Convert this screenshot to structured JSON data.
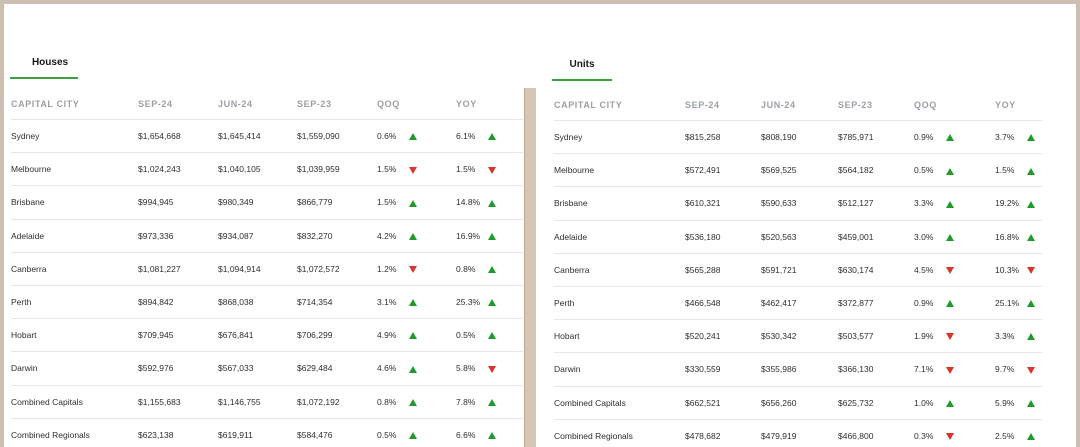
{
  "colors": {
    "up": "#1f9a2b",
    "down": "#d9352c",
    "tab_underline": "#3aa040"
  },
  "houses": {
    "tab_label": "Houses",
    "headers": [
      "CAPITAL CITY",
      "SEP-24",
      "JUN-24",
      "SEP-23",
      "QOQ",
      "YOY"
    ],
    "rows": [
      {
        "city": "Sydney",
        "sep24": "$1,654,668",
        "jun24": "$1,645,414",
        "sep23": "$1,559,090",
        "qoq": "0.6%",
        "qoq_dir": "up",
        "yoy": "6.1%",
        "yoy_dir": "up"
      },
      {
        "city": "Melbourne",
        "sep24": "$1,024,243",
        "jun24": "$1,040,105",
        "sep23": "$1,039,959",
        "qoq": "1.5%",
        "qoq_dir": "down",
        "yoy": "1.5%",
        "yoy_dir": "down"
      },
      {
        "city": "Brisbane",
        "sep24": "$994,945",
        "jun24": "$980,349",
        "sep23": "$866,779",
        "qoq": "1.5%",
        "qoq_dir": "up",
        "yoy": "14.8%",
        "yoy_dir": "up"
      },
      {
        "city": "Adelaide",
        "sep24": "$973,336",
        "jun24": "$934,087",
        "sep23": "$832,270",
        "qoq": "4.2%",
        "qoq_dir": "up",
        "yoy": "16.9%",
        "yoy_dir": "up"
      },
      {
        "city": "Canberra",
        "sep24": "$1,081,227",
        "jun24": "$1,094,914",
        "sep23": "$1,072,572",
        "qoq": "1.2%",
        "qoq_dir": "down",
        "yoy": "0.8%",
        "yoy_dir": "up"
      },
      {
        "city": "Perth",
        "sep24": "$894,842",
        "jun24": "$868,038",
        "sep23": "$714,354",
        "qoq": "3.1%",
        "qoq_dir": "up",
        "yoy": "25.3%",
        "yoy_dir": "up"
      },
      {
        "city": "Hobart",
        "sep24": "$709,945",
        "jun24": "$676,841",
        "sep23": "$706,299",
        "qoq": "4.9%",
        "qoq_dir": "up",
        "yoy": "0.5%",
        "yoy_dir": "up"
      },
      {
        "city": "Darwin",
        "sep24": "$592,976",
        "jun24": "$567,033",
        "sep23": "$629,484",
        "qoq": "4.6%",
        "qoq_dir": "up",
        "yoy": "5.8%",
        "yoy_dir": "down"
      },
      {
        "city": "Combined Capitals",
        "sep24": "$1,155,683",
        "jun24": "$1,146,755",
        "sep23": "$1,072,192",
        "qoq": "0.8%",
        "qoq_dir": "up",
        "yoy": "7.8%",
        "yoy_dir": "up"
      },
      {
        "city": "Combined Regionals",
        "sep24": "$623,138",
        "jun24": "$619,911",
        "sep23": "$584,476",
        "qoq": "0.5%",
        "qoq_dir": "up",
        "yoy": "6.6%",
        "yoy_dir": "up"
      }
    ]
  },
  "units": {
    "tab_label": "Units",
    "headers": [
      "CAPITAL CITY",
      "SEP-24",
      "JUN-24",
      "SEP-23",
      "QOQ",
      "YOY"
    ],
    "rows": [
      {
        "city": "Sydney",
        "sep24": "$815,258",
        "jun24": "$808,190",
        "sep23": "$785,971",
        "qoq": "0.9%",
        "qoq_dir": "up",
        "yoy": "3.7%",
        "yoy_dir": "up"
      },
      {
        "city": "Melbourne",
        "sep24": "$572,491",
        "jun24": "$569,525",
        "sep23": "$564,182",
        "qoq": "0.5%",
        "qoq_dir": "up",
        "yoy": "1.5%",
        "yoy_dir": "up"
      },
      {
        "city": "Brisbane",
        "sep24": "$610,321",
        "jun24": "$590,633",
        "sep23": "$512,127",
        "qoq": "3.3%",
        "qoq_dir": "up",
        "yoy": "19.2%",
        "yoy_dir": "up"
      },
      {
        "city": "Adelaide",
        "sep24": "$536,180",
        "jun24": "$520,563",
        "sep23": "$459,001",
        "qoq": "3.0%",
        "qoq_dir": "up",
        "yoy": "16.8%",
        "yoy_dir": "up"
      },
      {
        "city": "Canberra",
        "sep24": "$565,288",
        "jun24": "$591,721",
        "sep23": "$630,174",
        "qoq": "4.5%",
        "qoq_dir": "down",
        "yoy": "10.3%",
        "yoy_dir": "down"
      },
      {
        "city": "Perth",
        "sep24": "$466,548",
        "jun24": "$462,417",
        "sep23": "$372,877",
        "qoq": "0.9%",
        "qoq_dir": "up",
        "yoy": "25.1%",
        "yoy_dir": "up"
      },
      {
        "city": "Hobart",
        "sep24": "$520,241",
        "jun24": "$530,342",
        "sep23": "$503,577",
        "qoq": "1.9%",
        "qoq_dir": "down",
        "yoy": "3.3%",
        "yoy_dir": "up"
      },
      {
        "city": "Darwin",
        "sep24": "$330,559",
        "jun24": "$355,986",
        "sep23": "$366,130",
        "qoq": "7.1%",
        "qoq_dir": "down",
        "yoy": "9.7%",
        "yoy_dir": "down"
      },
      {
        "city": "Combined Capitals",
        "sep24": "$662,521",
        "jun24": "$656,260",
        "sep23": "$625,732",
        "qoq": "1.0%",
        "qoq_dir": "up",
        "yoy": "5.9%",
        "yoy_dir": "up"
      },
      {
        "city": "Combined Regionals",
        "sep24": "$478,682",
        "jun24": "$479,919",
        "sep23": "$466,800",
        "qoq": "0.3%",
        "qoq_dir": "down",
        "yoy": "2.5%",
        "yoy_dir": "up"
      }
    ]
  }
}
